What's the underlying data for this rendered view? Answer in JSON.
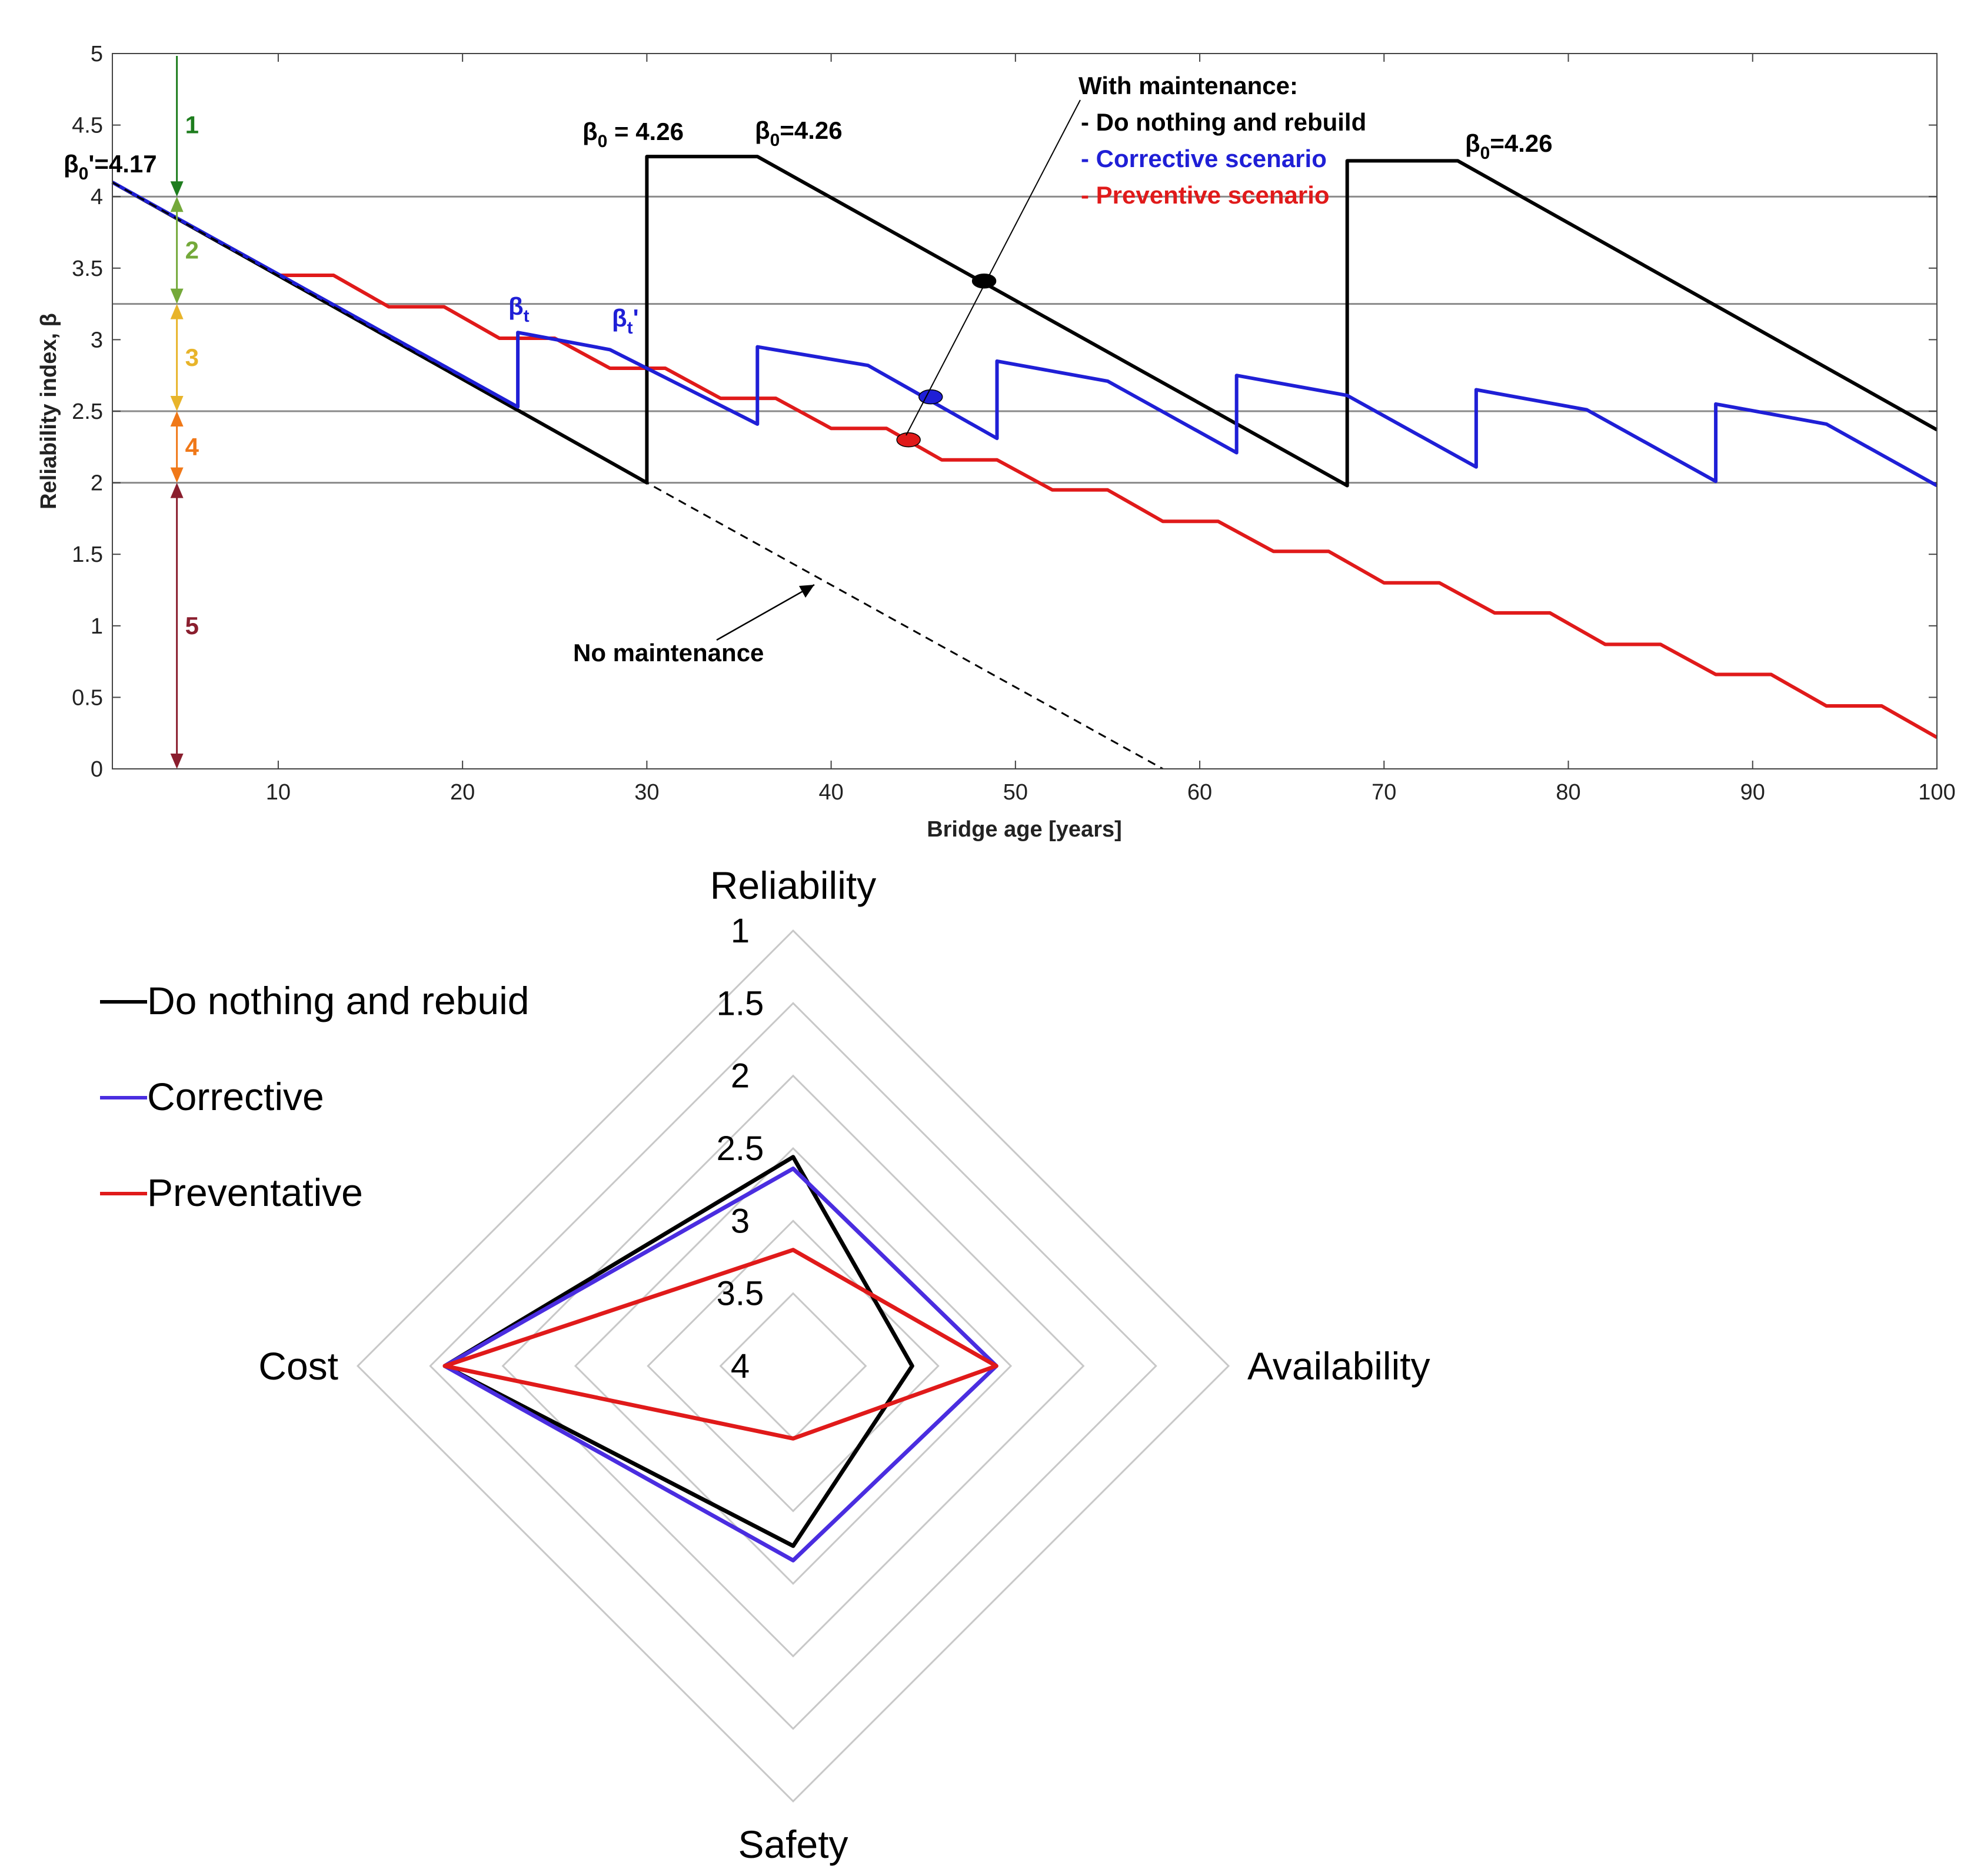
{
  "chart_data": [
    {
      "type": "line",
      "title": "",
      "xlabel": "Bridge age [years]",
      "ylabel": "Reliability index, β",
      "xlim": [
        1,
        100
      ],
      "ylim": [
        0,
        5
      ],
      "xticks": [
        "10",
        "20",
        "30",
        "40",
        "50",
        "60",
        "70",
        "80",
        "90",
        "100"
      ],
      "yticks": [
        "0",
        "0.5",
        "1",
        "1.5",
        "2",
        "2.5",
        "3",
        "3.5",
        "4",
        "4.5",
        "5"
      ],
      "threshold_lines": [
        2.0,
        2.5,
        3.25,
        4.0
      ],
      "bands": [
        {
          "label": "1",
          "from": 5.0,
          "to": 4.0,
          "color": "#1e7d1e"
        },
        {
          "label": "2",
          "from": 4.0,
          "to": 3.25,
          "color": "#74a93a"
        },
        {
          "label": "3",
          "from": 3.25,
          "to": 2.5,
          "color": "#e8b42a"
        },
        {
          "label": "4",
          "from": 2.5,
          "to": 2.0,
          "color": "#f07818"
        },
        {
          "label": "5",
          "from": 2.0,
          "to": 0.0,
          "color": "#8a1e2e"
        }
      ],
      "band_x": 4.5,
      "series": [
        {
          "name": "No maintenance",
          "color": "#000000",
          "dash": true,
          "x": [
            1,
            30,
            58
          ],
          "y": [
            4.1,
            2.0,
            0.0
          ]
        },
        {
          "name": "Do nothing and rebuild",
          "color": "#000000",
          "x": [
            1,
            30,
            30,
            36,
            68,
            68,
            74,
            100
          ],
          "y": [
            4.1,
            2.0,
            4.28,
            4.28,
            1.98,
            4.25,
            4.25,
            2.37
          ]
        },
        {
          "name": "Corrective scenario",
          "color": "#1f1fd6",
          "x": [
            1,
            23,
            23,
            28,
            36,
            36,
            42,
            49,
            49,
            55,
            62,
            62,
            68,
            75,
            75,
            81,
            88,
            88,
            94,
            100
          ],
          "y": [
            4.1,
            2.53,
            3.05,
            2.93,
            2.41,
            2.95,
            2.82,
            2.31,
            2.85,
            2.71,
            2.21,
            2.75,
            2.61,
            2.11,
            2.65,
            2.51,
            2.01,
            2.55,
            2.41,
            1.98
          ]
        },
        {
          "name": "Preventive scenario",
          "color": "#e01a1a",
          "x": [
            1,
            10,
            13,
            16,
            19,
            22,
            25,
            28,
            31,
            34,
            37,
            40,
            43,
            46,
            49,
            52,
            55,
            58,
            61,
            64,
            67,
            70,
            73,
            76,
            79,
            82,
            85,
            88,
            91,
            94,
            97,
            100
          ],
          "y": [
            4.1,
            3.45,
            3.45,
            3.23,
            3.23,
            3.01,
            3.01,
            2.8,
            2.8,
            2.59,
            2.59,
            2.38,
            2.38,
            2.16,
            2.16,
            1.95,
            1.95,
            1.73,
            1.73,
            1.52,
            1.52,
            1.3,
            1.3,
            1.09,
            1.09,
            0.87,
            0.87,
            0.66,
            0.66,
            0.44,
            0.44,
            0.22
          ]
        }
      ],
      "markers": [
        {
          "series": "Do nothing and rebuild",
          "x": 48.3,
          "y": 3.41,
          "color": "#000000"
        },
        {
          "series": "Corrective scenario",
          "x": 45.4,
          "y": 2.6,
          "color": "#1f1fd6"
        },
        {
          "series": "Preventive scenario",
          "x": 44.2,
          "y": 2.3,
          "color": "#e01a1a"
        }
      ],
      "annotations": {
        "beta0_prime": {
          "sym": "β",
          "sub": "0",
          "text": "'=4.17"
        },
        "beta0_first": {
          "sym": "β",
          "sub": "0",
          "text": " = 4.26"
        },
        "beta0_second": {
          "sym": "β",
          "sub": "0",
          "text": "=4.26"
        },
        "beta0_third": {
          "sym": "β",
          "sub": "0",
          "text": "=4.26"
        },
        "beta_t": {
          "sym": "β",
          "sub": "t",
          "text": ""
        },
        "beta_t_prime": {
          "sym": "β",
          "sub": "t",
          "text": "'"
        },
        "no_maintenance": "No maintenance",
        "with_maintenance": "With maintenance:",
        "legend_items": [
          {
            "text": "- Do nothing and rebuild",
            "color": "#000000"
          },
          {
            "text": "- Corrective scenario",
            "color": "#1f1fd6"
          },
          {
            "text": "- Preventive scenario",
            "color": "#e01a1a"
          }
        ]
      }
    },
    {
      "type": "radar",
      "axes": [
        "Reliability",
        "Availability",
        "Safety",
        "Cost"
      ],
      "scale_ticks": [
        "1",
        "1.5",
        "2",
        "2.5",
        "3",
        "3.5",
        "4"
      ],
      "scale_range": [
        1,
        4
      ],
      "reversed_scale": true,
      "series": [
        {
          "name": "Do nothing and rebuid",
          "color": "#000000",
          "values": [
            2.56,
            3.18,
            2.76,
            1.6
          ]
        },
        {
          "name": "Corrective",
          "color": "#4a2de0",
          "values": [
            2.64,
            2.6,
            2.66,
            1.6
          ]
        },
        {
          "name": "Preventative",
          "color": "#e01a1a",
          "values": [
            3.2,
            2.6,
            3.5,
            1.6
          ]
        }
      ]
    }
  ]
}
